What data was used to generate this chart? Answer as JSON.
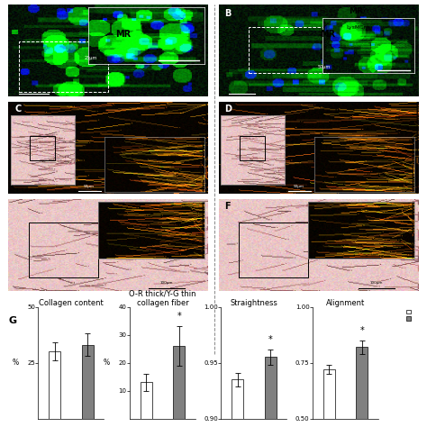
{
  "bar_charts": [
    {
      "title": "Collagen content",
      "title2": "",
      "ylim": [
        0,
        50
      ],
      "yticks": [
        25,
        50
      ],
      "ytick_labels": [
        "25",
        "50"
      ],
      "white_bar": 30,
      "white_err": 4,
      "gray_bar": 33,
      "gray_err": 5,
      "has_star": false,
      "has_ylabel": true
    },
    {
      "title": "O-R thick/Y-G thin",
      "title2": "collagen fiber",
      "ylim": [
        0,
        40
      ],
      "yticks": [
        10,
        20,
        30,
        40
      ],
      "ytick_labels": [
        "10",
        "20",
        "30",
        "40"
      ],
      "white_bar": 13,
      "white_err": 3,
      "gray_bar": 26,
      "gray_err": 7,
      "has_star": true,
      "has_ylabel": true
    },
    {
      "title": "Straightness",
      "title2": "",
      "ylim": [
        0.9,
        1.0
      ],
      "yticks": [
        0.9,
        0.95,
        1.0
      ],
      "ytick_labels": [
        "0.90",
        "0.95",
        "1.00"
      ],
      "white_bar": 0.935,
      "white_err": 0.006,
      "gray_bar": 0.955,
      "gray_err": 0.007,
      "has_star": true,
      "has_ylabel": false
    },
    {
      "title": "Alignment",
      "title2": "",
      "ylim": [
        0.5,
        1.0
      ],
      "yticks": [
        0.5,
        0.75,
        1.0
      ],
      "ytick_labels": [
        "0.50",
        "0.75",
        "1.00"
      ],
      "white_bar": 0.72,
      "white_err": 0.02,
      "gray_bar": 0.82,
      "gray_err": 0.03,
      "has_star": true,
      "has_ylabel": false
    }
  ],
  "bar_width": 0.35,
  "white_color": "#FFFFFF",
  "gray_color": "#808080",
  "bar_edge_color": "#000000",
  "bg_color": "#FFFFFF",
  "font_size_title": 6,
  "font_size_label": 5.5,
  "font_size_tick": 5,
  "font_size_panel": 7
}
